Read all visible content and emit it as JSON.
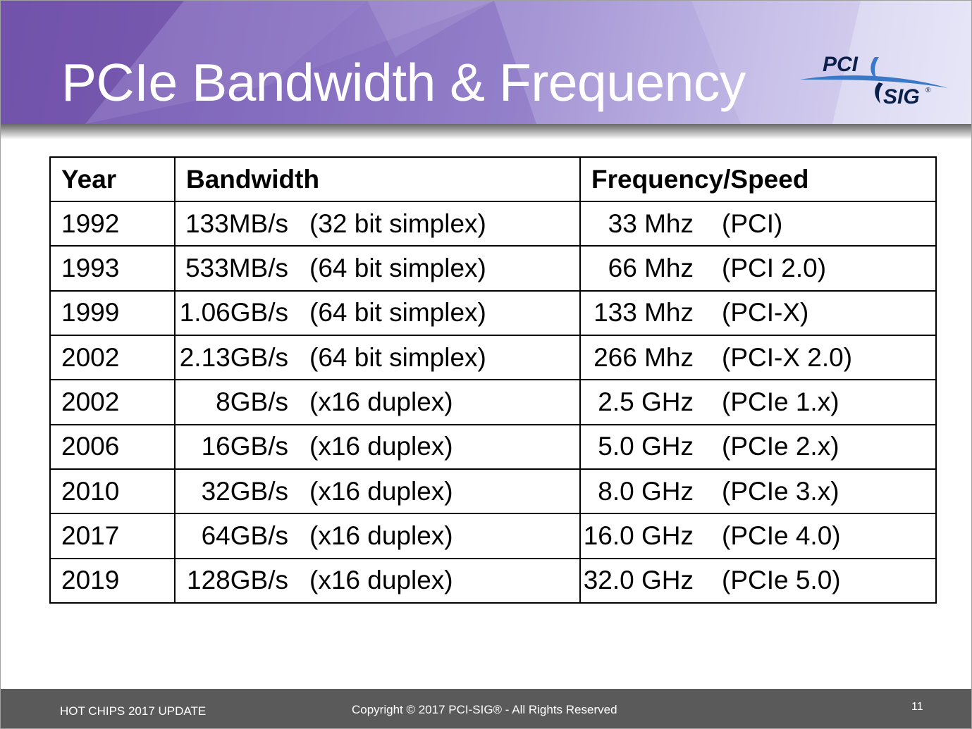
{
  "slide": {
    "title": "PCIe Bandwidth & Frequency",
    "logo": {
      "top_text": "PCI",
      "bottom_text": "SIG",
      "mark": "®"
    }
  },
  "table": {
    "headers": [
      "Year",
      "Bandwidth",
      "Frequency/Speed"
    ],
    "rows": [
      {
        "year": "1992",
        "bandwidth": "133MB/s",
        "bandwidth_note": "(32 bit simplex)",
        "frequency": "33 Mhz",
        "frequency_note": "(PCI)"
      },
      {
        "year": "1993",
        "bandwidth": "533MB/s",
        "bandwidth_note": "(64 bit simplex)",
        "frequency": "66 Mhz",
        "frequency_note": "(PCI 2.0)"
      },
      {
        "year": "1999",
        "bandwidth": "1.06GB/s",
        "bandwidth_note": "(64 bit simplex)",
        "frequency": "133 Mhz",
        "frequency_note": "(PCI-X)"
      },
      {
        "year": "2002",
        "bandwidth": "2.13GB/s",
        "bandwidth_note": "(64 bit simplex)",
        "frequency": "266 Mhz",
        "frequency_note": "(PCI-X 2.0)"
      },
      {
        "year": "2002",
        "bandwidth": "8GB/s",
        "bandwidth_note": "(x16 duplex)",
        "frequency": "2.5 GHz",
        "frequency_note": "(PCIe 1.x)"
      },
      {
        "year": "2006",
        "bandwidth": "16GB/s",
        "bandwidth_note": "(x16 duplex)",
        "frequency": "5.0 GHz",
        "frequency_note": "(PCIe 2.x)"
      },
      {
        "year": "2010",
        "bandwidth": "32GB/s",
        "bandwidth_note": "(x16 duplex)",
        "frequency": "8.0 GHz",
        "frequency_note": "(PCIe 3.x)"
      },
      {
        "year": "2017",
        "bandwidth": "64GB/s",
        "bandwidth_note": "(x16 duplex)",
        "frequency": "16.0 GHz",
        "frequency_note": "(PCIe 4.0)"
      },
      {
        "year": "2019",
        "bandwidth": "128GB/s",
        "bandwidth_note": "(x16 duplex)",
        "frequency": "32.0 GHz",
        "frequency_note": "(PCIe 5.0)"
      }
    ]
  },
  "footer": {
    "left": "HOT CHIPS 2017 UPDATE",
    "center": "Copyright © 2017 PCI-SIG® - All Rights Reserved",
    "page_number": "11"
  },
  "colors": {
    "header_purple": "#7a5cb0",
    "header_light": "#e4e2f6",
    "footer_gray": "#5a5a5a",
    "logo_navy": "#0a1f4a",
    "logo_blue": "#3a78c8"
  },
  "icons": {
    "logo": "pci-sig-logo"
  }
}
